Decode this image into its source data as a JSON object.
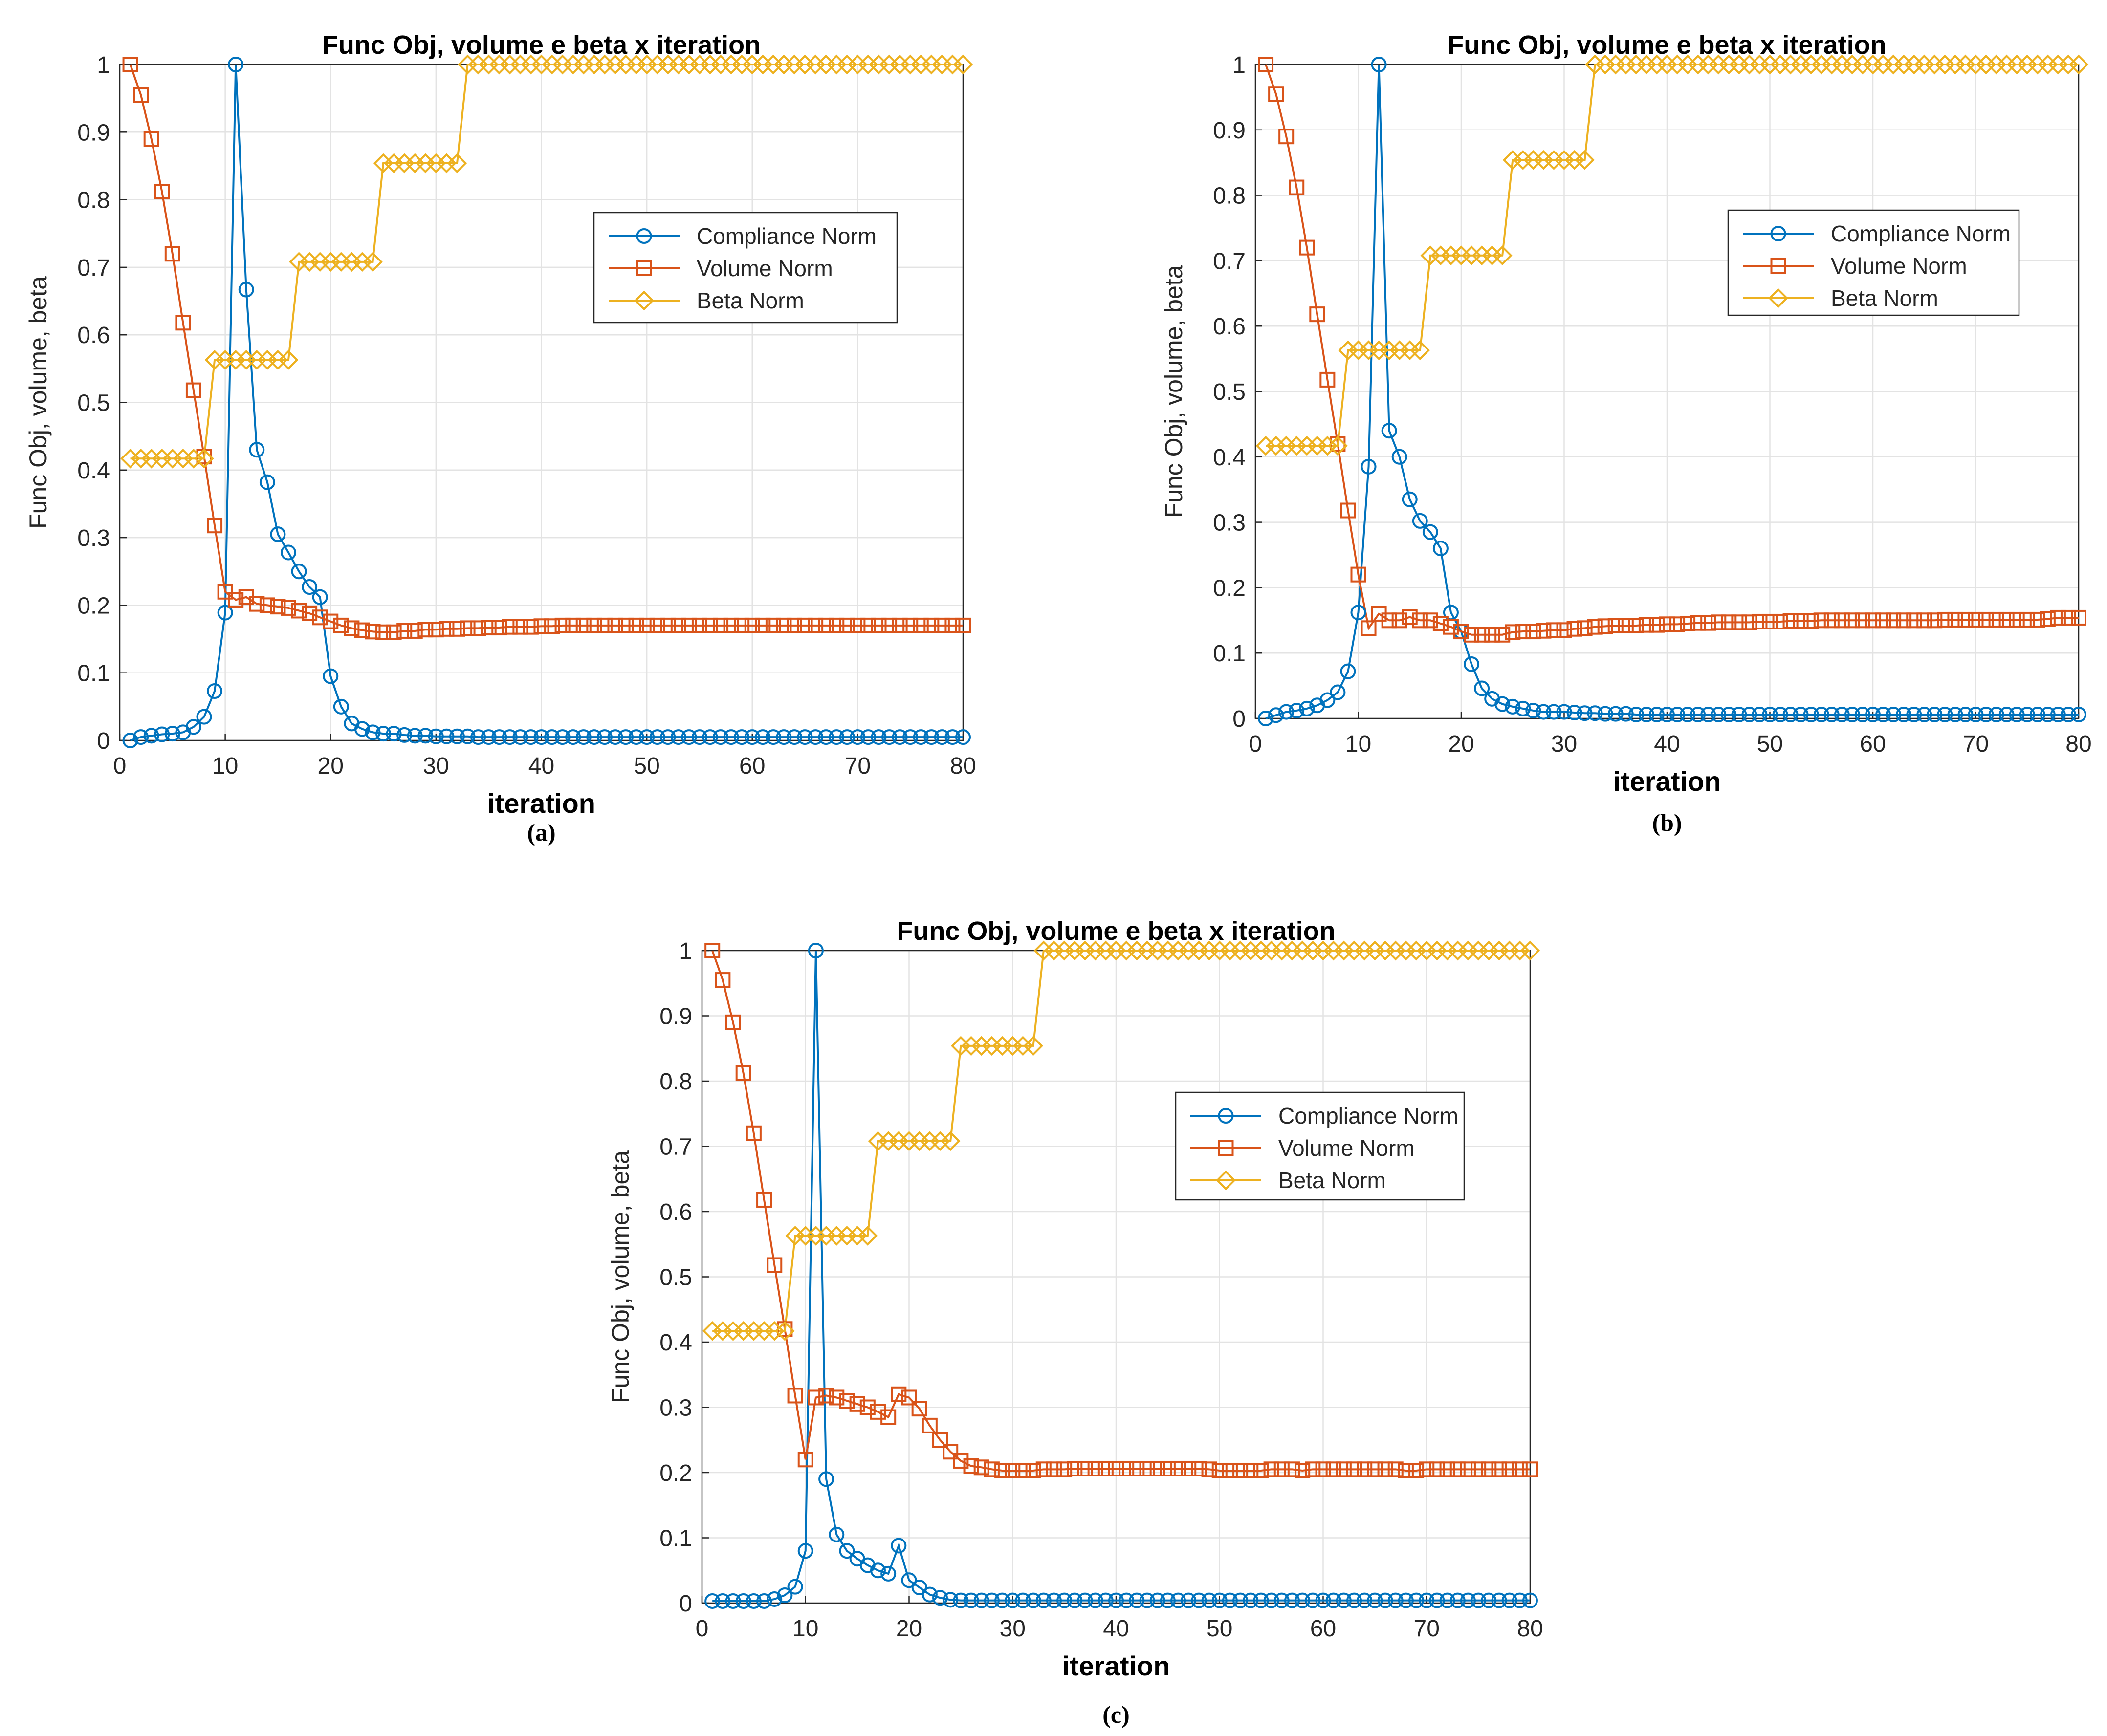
{
  "figure": {
    "panels": [
      "(a)",
      "(b)",
      "(c)"
    ]
  },
  "style": {
    "colors": {
      "compliance": "#0072BD",
      "volume": "#D95319",
      "beta": "#EDB120",
      "grid": "#E3E3E3",
      "axis": "#262626"
    },
    "markers": {
      "compliance": "circle",
      "volume": "square",
      "beta": "diamond"
    },
    "grid": true,
    "legend_placement": "upper-right inside axes"
  },
  "chart_data": [
    {
      "panel": "(a)",
      "type": "line",
      "title": "Func Obj, volume e beta x iteration",
      "xlabel": "iteration",
      "ylabel": "Func Obj, volume, beta",
      "xlim": [
        0,
        80
      ],
      "ylim": [
        0,
        1
      ],
      "xticks": [
        0,
        10,
        20,
        30,
        40,
        50,
        60,
        70,
        80
      ],
      "yticks": [
        0,
        0.1,
        0.2,
        0.3,
        0.4,
        0.5,
        0.6,
        0.7,
        0.8,
        0.9,
        1
      ],
      "x_start": 1,
      "x_end": 80,
      "series": [
        {
          "name": "Compliance Norm",
          "key": "compliance",
          "values": [
            0.0,
            0.005,
            0.007,
            0.009,
            0.01,
            0.012,
            0.02,
            0.035,
            0.073,
            0.189,
            1.0,
            0.667,
            0.43,
            0.382,
            0.305,
            0.278,
            0.25,
            0.227,
            0.212,
            0.095,
            0.05,
            0.025,
            0.017,
            0.012,
            0.01,
            0.01,
            0.008,
            0.007,
            0.007,
            0.006,
            0.006,
            0.006,
            0.006,
            0.005,
            0.005,
            0.005,
            0.005,
            0.005,
            0.005,
            0.005,
            0.005,
            0.005,
            0.005,
            0.005,
            0.005,
            0.005,
            0.005,
            0.005,
            0.005,
            0.005,
            0.005,
            0.005,
            0.005,
            0.005,
            0.005,
            0.005,
            0.005,
            0.005,
            0.005,
            0.005,
            0.005,
            0.005,
            0.005,
            0.005,
            0.005,
            0.005,
            0.005,
            0.005,
            0.005,
            0.005,
            0.005,
            0.005,
            0.005,
            0.005,
            0.005,
            0.005,
            0.005,
            0.005,
            0.005,
            0.005
          ]
        },
        {
          "name": "Volume Norm",
          "key": "volume",
          "values": [
            1.0,
            0.955,
            0.89,
            0.812,
            0.72,
            0.618,
            0.518,
            0.42,
            0.318,
            0.22,
            0.208,
            0.212,
            0.202,
            0.2,
            0.198,
            0.196,
            0.192,
            0.188,
            0.182,
            0.176,
            0.17,
            0.166,
            0.163,
            0.161,
            0.16,
            0.16,
            0.162,
            0.162,
            0.164,
            0.164,
            0.165,
            0.165,
            0.166,
            0.166,
            0.167,
            0.167,
            0.168,
            0.168,
            0.168,
            0.169,
            0.169,
            0.17,
            0.17,
            0.17,
            0.17,
            0.17,
            0.17,
            0.17,
            0.17,
            0.17,
            0.17,
            0.17,
            0.17,
            0.17,
            0.17,
            0.17,
            0.17,
            0.17,
            0.17,
            0.17,
            0.17,
            0.17,
            0.17,
            0.17,
            0.17,
            0.17,
            0.17,
            0.17,
            0.17,
            0.17,
            0.17,
            0.17,
            0.17,
            0.17,
            0.17,
            0.17,
            0.17,
            0.17,
            0.17,
            0.17
          ]
        },
        {
          "name": "Beta Norm",
          "key": "beta",
          "values": [
            0.417,
            0.417,
            0.417,
            0.417,
            0.417,
            0.417,
            0.417,
            0.417,
            0.563,
            0.563,
            0.563,
            0.563,
            0.563,
            0.563,
            0.563,
            0.563,
            0.708,
            0.708,
            0.708,
            0.708,
            0.708,
            0.708,
            0.708,
            0.708,
            0.854,
            0.854,
            0.854,
            0.854,
            0.854,
            0.854,
            0.854,
            0.854,
            1.0,
            1.0,
            1.0,
            1.0,
            1.0,
            1.0,
            1.0,
            1.0,
            1.0,
            1.0,
            1.0,
            1.0,
            1.0,
            1.0,
            1.0,
            1.0,
            1.0,
            1.0,
            1.0,
            1.0,
            1.0,
            1.0,
            1.0,
            1.0,
            1.0,
            1.0,
            1.0,
            1.0,
            1.0,
            1.0,
            1.0,
            1.0,
            1.0,
            1.0,
            1.0,
            1.0,
            1.0,
            1.0,
            1.0,
            1.0,
            1.0,
            1.0,
            1.0,
            1.0,
            1.0,
            1.0,
            1.0,
            1.0
          ]
        }
      ]
    },
    {
      "panel": "(b)",
      "type": "line",
      "title": "Func Obj, volume e beta x iteration",
      "xlabel": "iteration",
      "ylabel": "Func Obj, volume, beta",
      "xlim": [
        0,
        80
      ],
      "ylim": [
        0,
        1
      ],
      "xticks": [
        0,
        10,
        20,
        30,
        40,
        50,
        60,
        70,
        80
      ],
      "yticks": [
        0,
        0.1,
        0.2,
        0.3,
        0.4,
        0.5,
        0.6,
        0.7,
        0.8,
        0.9,
        1
      ],
      "x_start": 1,
      "x_end": 80,
      "series": [
        {
          "name": "Compliance Norm",
          "key": "compliance",
          "values": [
            0.0,
            0.005,
            0.01,
            0.012,
            0.015,
            0.02,
            0.028,
            0.04,
            0.072,
            0.162,
            0.385,
            1.0,
            0.44,
            0.4,
            0.335,
            0.302,
            0.285,
            0.26,
            0.162,
            0.133,
            0.083,
            0.046,
            0.03,
            0.022,
            0.018,
            0.015,
            0.012,
            0.01,
            0.01,
            0.01,
            0.009,
            0.008,
            0.008,
            0.007,
            0.007,
            0.007,
            0.006,
            0.006,
            0.006,
            0.006,
            0.006,
            0.006,
            0.006,
            0.006,
            0.006,
            0.006,
            0.006,
            0.006,
            0.006,
            0.006,
            0.006,
            0.006,
            0.006,
            0.006,
            0.006,
            0.006,
            0.006,
            0.006,
            0.006,
            0.006,
            0.006,
            0.006,
            0.006,
            0.006,
            0.006,
            0.006,
            0.006,
            0.006,
            0.006,
            0.006,
            0.006,
            0.006,
            0.006,
            0.006,
            0.006,
            0.006,
            0.006,
            0.006,
            0.006,
            0.006
          ]
        },
        {
          "name": "Volume Norm",
          "key": "volume",
          "values": [
            1.0,
            0.955,
            0.89,
            0.812,
            0.72,
            0.618,
            0.518,
            0.42,
            0.318,
            0.22,
            0.138,
            0.16,
            0.15,
            0.15,
            0.155,
            0.15,
            0.15,
            0.145,
            0.14,
            0.133,
            0.128,
            0.128,
            0.128,
            0.128,
            0.132,
            0.133,
            0.133,
            0.134,
            0.135,
            0.135,
            0.137,
            0.138,
            0.14,
            0.141,
            0.142,
            0.142,
            0.142,
            0.143,
            0.143,
            0.144,
            0.144,
            0.145,
            0.146,
            0.146,
            0.147,
            0.147,
            0.147,
            0.147,
            0.148,
            0.148,
            0.148,
            0.149,
            0.149,
            0.149,
            0.15,
            0.15,
            0.15,
            0.15,
            0.15,
            0.15,
            0.15,
            0.15,
            0.15,
            0.15,
            0.15,
            0.15,
            0.151,
            0.151,
            0.151,
            0.151,
            0.151,
            0.151,
            0.151,
            0.151,
            0.151,
            0.151,
            0.152,
            0.154,
            0.154,
            0.154
          ]
        },
        {
          "name": "Beta Norm",
          "key": "beta",
          "values": [
            0.417,
            0.417,
            0.417,
            0.417,
            0.417,
            0.417,
            0.417,
            0.417,
            0.563,
            0.563,
            0.563,
            0.563,
            0.563,
            0.563,
            0.563,
            0.563,
            0.708,
            0.708,
            0.708,
            0.708,
            0.708,
            0.708,
            0.708,
            0.708,
            0.854,
            0.854,
            0.854,
            0.854,
            0.854,
            0.854,
            0.854,
            0.854,
            1.0,
            1.0,
            1.0,
            1.0,
            1.0,
            1.0,
            1.0,
            1.0,
            1.0,
            1.0,
            1.0,
            1.0,
            1.0,
            1.0,
            1.0,
            1.0,
            1.0,
            1.0,
            1.0,
            1.0,
            1.0,
            1.0,
            1.0,
            1.0,
            1.0,
            1.0,
            1.0,
            1.0,
            1.0,
            1.0,
            1.0,
            1.0,
            1.0,
            1.0,
            1.0,
            1.0,
            1.0,
            1.0,
            1.0,
            1.0,
            1.0,
            1.0,
            1.0,
            1.0,
            1.0,
            1.0,
            1.0,
            1.0
          ]
        }
      ]
    },
    {
      "panel": "(c)",
      "type": "line",
      "title": "Func Obj, volume e beta x iteration",
      "xlabel": "iteration",
      "ylabel": "Func Obj, volume, beta",
      "xlim": [
        0,
        80
      ],
      "ylim": [
        0,
        1
      ],
      "xticks": [
        0,
        10,
        20,
        30,
        40,
        50,
        60,
        70,
        80
      ],
      "yticks": [
        0,
        0.1,
        0.2,
        0.3,
        0.4,
        0.5,
        0.6,
        0.7,
        0.8,
        0.9,
        1
      ],
      "x_start": 1,
      "x_end": 80,
      "series": [
        {
          "name": "Compliance Norm",
          "key": "compliance",
          "values": [
            0.003,
            0.003,
            0.003,
            0.003,
            0.003,
            0.003,
            0.006,
            0.012,
            0.025,
            0.08,
            1.0,
            0.19,
            0.105,
            0.08,
            0.068,
            0.058,
            0.05,
            0.045,
            0.088,
            0.035,
            0.024,
            0.013,
            0.008,
            0.005,
            0.004,
            0.004,
            0.004,
            0.004,
            0.004,
            0.004,
            0.004,
            0.004,
            0.004,
            0.004,
            0.004,
            0.004,
            0.004,
            0.004,
            0.004,
            0.004,
            0.004,
            0.004,
            0.004,
            0.004,
            0.004,
            0.004,
            0.004,
            0.004,
            0.004,
            0.004,
            0.004,
            0.004,
            0.004,
            0.004,
            0.004,
            0.004,
            0.004,
            0.004,
            0.004,
            0.004,
            0.004,
            0.004,
            0.004,
            0.004,
            0.004,
            0.004,
            0.004,
            0.004,
            0.004,
            0.004,
            0.004,
            0.004,
            0.004,
            0.004,
            0.004,
            0.004,
            0.004,
            0.004,
            0.004,
            0.004
          ]
        },
        {
          "name": "Volume Norm",
          "key": "volume",
          "values": [
            1.0,
            0.955,
            0.89,
            0.812,
            0.72,
            0.618,
            0.518,
            0.42,
            0.318,
            0.22,
            0.315,
            0.318,
            0.315,
            0.31,
            0.305,
            0.3,
            0.293,
            0.285,
            0.32,
            0.315,
            0.298,
            0.272,
            0.25,
            0.232,
            0.218,
            0.21,
            0.208,
            0.205,
            0.203,
            0.203,
            0.203,
            0.203,
            0.205,
            0.205,
            0.205,
            0.206,
            0.206,
            0.206,
            0.206,
            0.206,
            0.206,
            0.206,
            0.206,
            0.206,
            0.206,
            0.206,
            0.206,
            0.206,
            0.205,
            0.203,
            0.203,
            0.203,
            0.203,
            0.203,
            0.205,
            0.205,
            0.205,
            0.203,
            0.205,
            0.205,
            0.205,
            0.205,
            0.205,
            0.205,
            0.205,
            0.205,
            0.205,
            0.203,
            0.203,
            0.205,
            0.205,
            0.205,
            0.205,
            0.205,
            0.205,
            0.205,
            0.205,
            0.205,
            0.205,
            0.205
          ]
        },
        {
          "name": "Beta Norm",
          "key": "beta",
          "values": [
            0.417,
            0.417,
            0.417,
            0.417,
            0.417,
            0.417,
            0.417,
            0.417,
            0.563,
            0.563,
            0.563,
            0.563,
            0.563,
            0.563,
            0.563,
            0.563,
            0.708,
            0.708,
            0.708,
            0.708,
            0.708,
            0.708,
            0.708,
            0.708,
            0.854,
            0.854,
            0.854,
            0.854,
            0.854,
            0.854,
            0.854,
            0.854,
            1.0,
            1.0,
            1.0,
            1.0,
            1.0,
            1.0,
            1.0,
            1.0,
            1.0,
            1.0,
            1.0,
            1.0,
            1.0,
            1.0,
            1.0,
            1.0,
            1.0,
            1.0,
            1.0,
            1.0,
            1.0,
            1.0,
            1.0,
            1.0,
            1.0,
            1.0,
            1.0,
            1.0,
            1.0,
            1.0,
            1.0,
            1.0,
            1.0,
            1.0,
            1.0,
            1.0,
            1.0,
            1.0,
            1.0,
            1.0,
            1.0,
            1.0,
            1.0,
            1.0,
            1.0,
            1.0,
            1.0,
            1.0
          ]
        }
      ]
    }
  ]
}
